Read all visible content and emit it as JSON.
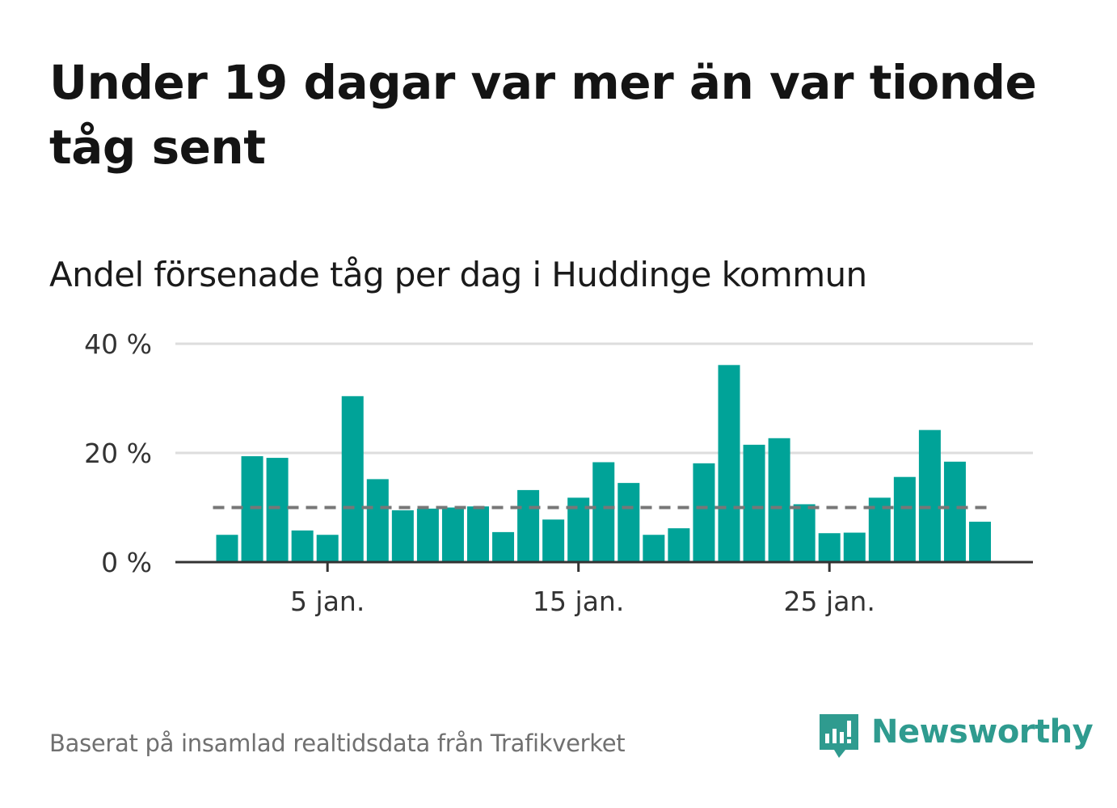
{
  "title": "Under 19 dagar var mer än var tionde tåg sent",
  "subtitle": "Andel försenade tåg per dag i Huddinge kommun",
  "footer": "Baserat på insamlad realtidsdata från Trafikverket",
  "logo": {
    "text": "Newsworthy",
    "icon": "newsworthy-logo-icon"
  },
  "colors": {
    "bar": "#00a398",
    "reference": "#777777",
    "grid": "#dddddd",
    "axis": "#333333",
    "brand": "#2f9b8f"
  },
  "chart_data": {
    "type": "bar",
    "title": "Andel försenade tåg per dag i Huddinge kommun",
    "xlabel": "",
    "ylabel": "",
    "x": [
      "2024-01-01",
      "2024-01-02",
      "2024-01-03",
      "2024-01-04",
      "2024-01-05",
      "2024-01-06",
      "2024-01-07",
      "2024-01-08",
      "2024-01-09",
      "2024-01-10",
      "2024-01-11",
      "2024-01-12",
      "2024-01-13",
      "2024-01-14",
      "2024-01-15",
      "2024-01-16",
      "2024-01-17",
      "2024-01-18",
      "2024-01-19",
      "2024-01-20",
      "2024-01-21",
      "2024-01-22",
      "2024-01-23",
      "2024-01-24",
      "2024-01-25",
      "2024-01-26",
      "2024-01-27",
      "2024-01-28",
      "2024-01-29",
      "2024-01-30",
      "2024-01-31"
    ],
    "values": [
      5.0,
      19.4,
      19.1,
      5.8,
      5.0,
      30.4,
      15.2,
      9.5,
      9.8,
      10.0,
      10.2,
      5.5,
      13.2,
      7.8,
      11.8,
      18.3,
      14.5,
      5.0,
      6.2,
      18.1,
      36.1,
      21.5,
      22.7,
      10.6,
      5.3,
      5.4,
      11.8,
      15.6,
      24.2,
      18.4,
      7.4
    ],
    "reference_line": 10,
    "ylim": [
      0,
      40
    ],
    "y_ticks": [
      0,
      20,
      40
    ],
    "y_tick_labels": [
      "0 %",
      "20 %",
      "40 %"
    ],
    "x_tick_positions": [
      "2024-01-05",
      "2024-01-15",
      "2024-01-25"
    ],
    "x_tick_labels": [
      "5 jan.",
      "15 jan.",
      "25 jan."
    ],
    "grid": true,
    "legend": "none"
  }
}
